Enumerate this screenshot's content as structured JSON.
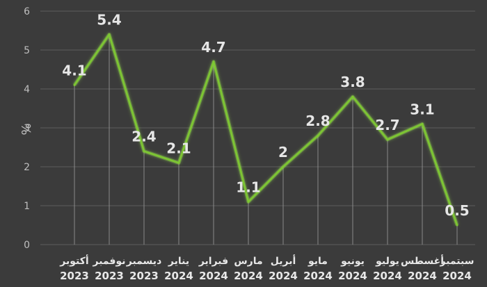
{
  "chart_data": {
    "type": "line",
    "ylabel": "%",
    "ylim": [
      0,
      6
    ],
    "yticks": [
      "0",
      "1",
      "2",
      "3",
      "4",
      "5",
      "6"
    ],
    "grid": true,
    "categories": [
      {
        "month": "أكتوبر",
        "year": "2023"
      },
      {
        "month": "نوفمبر",
        "year": "2023"
      },
      {
        "month": "ديسمبر",
        "year": "2023"
      },
      {
        "month": "يناير",
        "year": "2024"
      },
      {
        "month": "فبراير",
        "year": "2024"
      },
      {
        "month": "مارس",
        "year": "2024"
      },
      {
        "month": "أبريل",
        "year": "2024"
      },
      {
        "month": "مايو",
        "year": "2024"
      },
      {
        "month": "يونيو",
        "year": "2024"
      },
      {
        "month": "يوليو",
        "year": "2024"
      },
      {
        "month": "أغسطس",
        "year": "2024"
      },
      {
        "month": "سبتمبر",
        "year": "2024"
      }
    ],
    "series": [
      {
        "values": [
          4.1,
          5.4,
          2.4,
          2.1,
          4.7,
          1.1,
          2,
          2.8,
          3.8,
          2.7,
          3.1,
          0.5
        ],
        "labels": [
          "4.1",
          "5.4",
          "2.4",
          "2.1",
          "4.7",
          "1.1",
          "2",
          "2.8",
          "3.8",
          "2.7",
          "3.1",
          "0.5"
        ]
      }
    ],
    "colors": {
      "line": "#7ec832",
      "glow": "#9be64f",
      "grid": "#5d5d5d",
      "axis": "#bfbfbf",
      "background": "#3b3b3b"
    }
  }
}
